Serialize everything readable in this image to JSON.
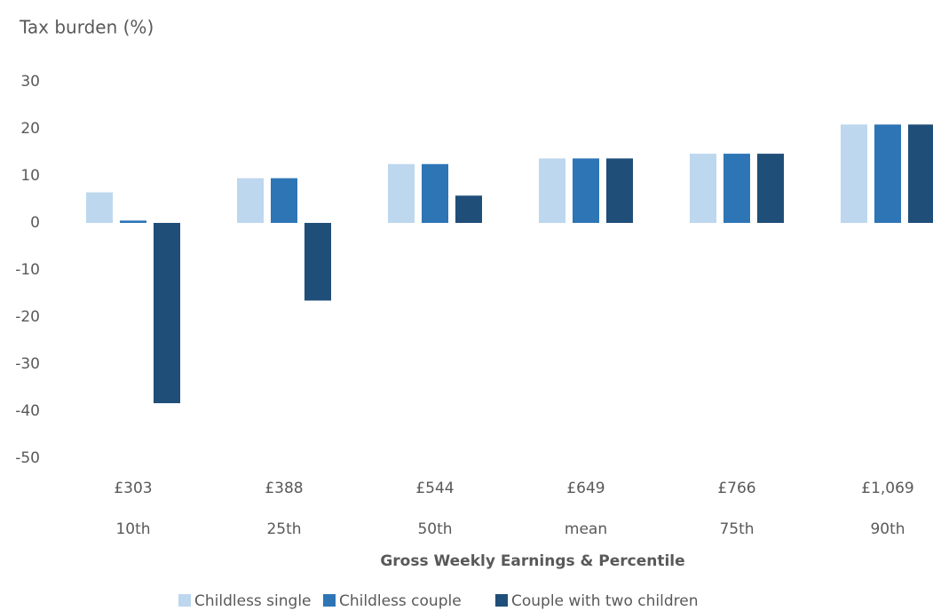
{
  "chart_data": {
    "type": "bar",
    "y_axis_label": "Tax burden (%)",
    "x_axis_label": "Gross Weekly Earnings & Percentile",
    "categories": [
      "£303",
      "£388",
      "£544",
      "£649",
      "£766",
      "£1,069"
    ],
    "percentiles": [
      "10th",
      "25th",
      "50th",
      "mean",
      "75th",
      "90th"
    ],
    "series": [
      {
        "name": "Childless single",
        "color": "#bdd7ee",
        "values": [
          6.5,
          9.5,
          12.5,
          13.7,
          14.7,
          20.9
        ]
      },
      {
        "name": "Childless couple",
        "color": "#2e75b6",
        "values": [
          0.5,
          9.5,
          12.5,
          13.7,
          14.7,
          20.9
        ]
      },
      {
        "name": "Couple with two children",
        "color": "#1f4e79",
        "values": [
          -38.3,
          -16.5,
          5.8,
          13.7,
          14.7,
          20.9
        ]
      }
    ],
    "ylim": [
      -50,
      30
    ],
    "yticks": [
      -50,
      -40,
      -30,
      -20,
      -10,
      0,
      10,
      20,
      30
    ],
    "grid": false,
    "legend": "bottom"
  }
}
